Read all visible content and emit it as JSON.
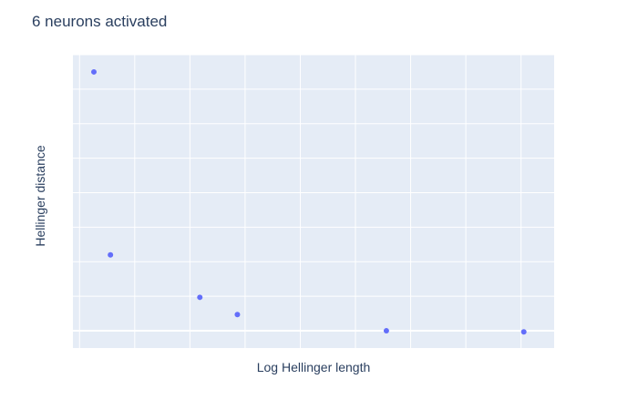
{
  "chart_data": {
    "type": "scatter",
    "title": "6 neurons activated",
    "xlabel": "Log Hellinger length",
    "ylabel": "Hellinger distance",
    "xlim": [
      -0.12,
      8.6
    ],
    "ylim": [
      -0.05,
      0.8
    ],
    "x": [
      0.26,
      0.56,
      2.18,
      2.86,
      5.56,
      8.05
    ],
    "y": [
      0.75,
      0.22,
      0.097,
      0.047,
      0.0,
      -0.003
    ],
    "series": [
      {
        "color": "#636efa"
      }
    ],
    "tick_labels_visible": false,
    "grid": true,
    "plot_bg": "#e5ecf6",
    "grid_color": "#ffffff"
  }
}
